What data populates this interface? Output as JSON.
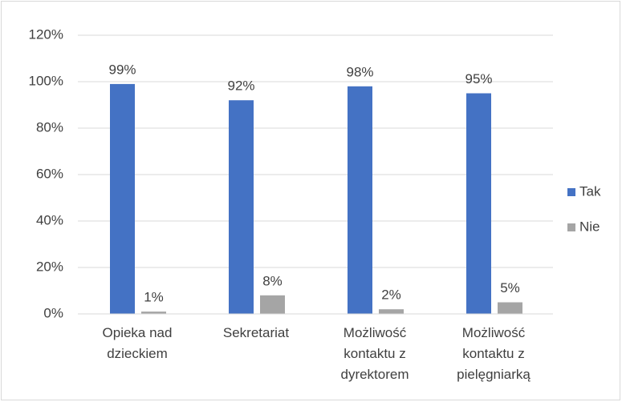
{
  "chart_data": {
    "type": "bar",
    "categories": [
      "Opieka nad dzieckiem",
      "Sekretariat",
      "Możliwość kontaktu z dyrektorem",
      "Możliwość kontaktu z pielęgniarką"
    ],
    "series": [
      {
        "name": "Tak",
        "color": "#4472c4",
        "values": [
          99,
          92,
          98,
          95
        ],
        "value_labels": [
          "99%",
          "92%",
          "98%",
          "95%"
        ]
      },
      {
        "name": "Nie",
        "color": "#a5a5a5",
        "values": [
          1,
          8,
          2,
          5
        ],
        "value_labels": [
          "1%",
          "8%",
          "2%",
          "5%"
        ]
      }
    ],
    "ylim": [
      0,
      120
    ],
    "yticks": [
      {
        "value": 0,
        "label": "0%"
      },
      {
        "value": 20,
        "label": "20%"
      },
      {
        "value": 40,
        "label": "40%"
      },
      {
        "value": 60,
        "label": "60%"
      },
      {
        "value": 80,
        "label": "80%"
      },
      {
        "value": 100,
        "label": "100%"
      },
      {
        "value": 120,
        "label": "120%"
      }
    ],
    "grid": true,
    "legend": "right"
  }
}
